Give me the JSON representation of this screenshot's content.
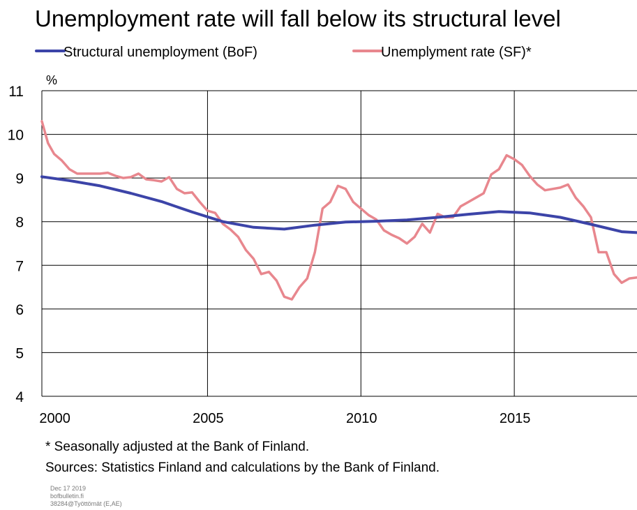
{
  "title": "Unemployment rate will fall below its structural level",
  "footnotes": {
    "note": "* Seasonally adjusted at the Bank of Finland.",
    "sources": "Sources: Statistics Finland and calculations by the Bank of Finland."
  },
  "meta": {
    "date": "Dec 17 2019",
    "site": "bofbulletin.fi",
    "code": "38284@Työttömät (E,AE)"
  },
  "chart_data": {
    "type": "line",
    "title": "Unemployment rate will fall below its structural level",
    "ylabel": "%",
    "xlabel": "",
    "xlim": [
      1999.6,
      2019.0
    ],
    "ylim": [
      4,
      11
    ],
    "yticks": [
      4,
      5,
      6,
      7,
      8,
      9,
      10,
      11
    ],
    "xticks": [
      2000,
      2005,
      2010,
      2015
    ],
    "xtick_labels": [
      "2000",
      "2005",
      "2010",
      "2015"
    ],
    "grid": true,
    "legend_position": "top",
    "series": [
      {
        "name": "Structural unemployment (BoF)",
        "color": "#3c44a8",
        "x": [
          1999.6,
          2000.5,
          2001.5,
          2002.5,
          2003.5,
          2004.5,
          2005.5,
          2006.5,
          2007.5,
          2008.5,
          2009.5,
          2010.5,
          2011.5,
          2012.5,
          2013.5,
          2014.5,
          2015.5,
          2016.5,
          2017.5,
          2018.5,
          2019.0
        ],
        "y": [
          9.03,
          8.94,
          8.82,
          8.65,
          8.46,
          8.22,
          8.0,
          7.87,
          7.83,
          7.92,
          7.99,
          8.01,
          8.04,
          8.1,
          8.17,
          8.23,
          8.2,
          8.1,
          7.94,
          7.77,
          7.75
        ]
      },
      {
        "name": "Unemplyment rate (SF)*",
        "color": "#e8878e",
        "x": [
          1999.6,
          1999.8,
          2000.0,
          2000.25,
          2000.5,
          2000.75,
          2001.0,
          2001.25,
          2001.5,
          2001.75,
          2002.0,
          2002.25,
          2002.5,
          2002.75,
          2003.0,
          2003.25,
          2003.5,
          2003.75,
          2004.0,
          2004.25,
          2004.5,
          2004.75,
          2005.0,
          2005.25,
          2005.5,
          2005.75,
          2006.0,
          2006.25,
          2006.5,
          2006.75,
          2007.0,
          2007.25,
          2007.5,
          2007.75,
          2008.0,
          2008.25,
          2008.5,
          2008.75,
          2009.0,
          2009.25,
          2009.5,
          2009.75,
          2010.0,
          2010.25,
          2010.5,
          2010.75,
          2011.0,
          2011.25,
          2011.5,
          2011.75,
          2012.0,
          2012.25,
          2012.5,
          2012.75,
          2013.0,
          2013.25,
          2013.5,
          2013.75,
          2014.0,
          2014.25,
          2014.5,
          2014.75,
          2015.0,
          2015.25,
          2015.5,
          2015.75,
          2016.0,
          2016.25,
          2016.5,
          2016.75,
          2017.0,
          2017.25,
          2017.5,
          2017.75,
          2018.0,
          2018.25,
          2018.5,
          2018.75,
          2019.0
        ],
        "y": [
          10.3,
          9.8,
          9.55,
          9.4,
          9.2,
          9.1,
          9.1,
          9.1,
          9.1,
          9.12,
          9.05,
          9.0,
          9.02,
          9.1,
          8.97,
          8.95,
          8.92,
          9.02,
          8.75,
          8.65,
          8.67,
          8.45,
          8.25,
          8.2,
          7.95,
          7.82,
          7.65,
          7.35,
          7.15,
          6.8,
          6.85,
          6.65,
          6.28,
          6.22,
          6.5,
          6.7,
          7.3,
          8.3,
          8.45,
          8.82,
          8.75,
          8.45,
          8.3,
          8.15,
          8.05,
          7.8,
          7.7,
          7.62,
          7.5,
          7.65,
          7.95,
          7.75,
          8.18,
          8.1,
          8.1,
          8.35,
          8.45,
          8.55,
          8.65,
          9.08,
          9.2,
          9.52,
          9.43,
          9.3,
          9.05,
          8.85,
          8.72,
          8.75,
          8.78,
          8.85,
          8.55,
          8.35,
          8.1,
          7.3,
          7.3,
          6.8,
          6.6,
          6.7,
          6.72
        ]
      }
    ]
  }
}
